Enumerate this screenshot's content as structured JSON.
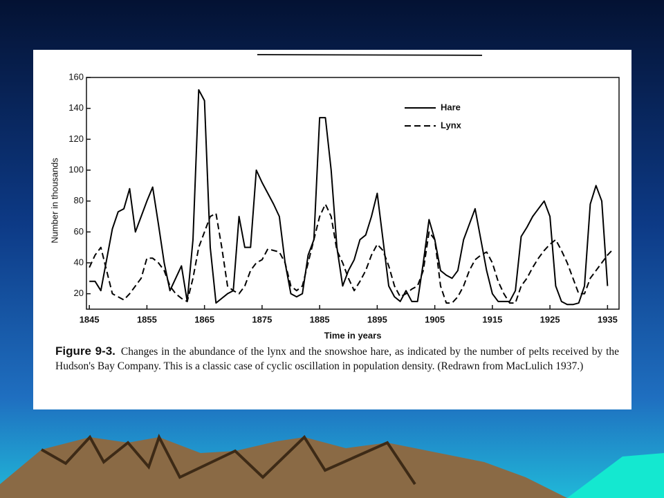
{
  "chart_data": {
    "type": "line",
    "x_label": "Time in years",
    "y_label": "Number in thousands",
    "figure_label": "Figure 9-3.",
    "caption": "Changes in the abundance of the lynx and the snowshoe hare, as indicated by the number of pelts received by the Hudson's Bay Company. This is a classic case of cyclic oscillation in population density. (Redrawn from MacLulich 1937.)",
    "x": [
      1845,
      1846,
      1847,
      1848,
      1849,
      1850,
      1851,
      1852,
      1853,
      1854,
      1855,
      1856,
      1857,
      1858,
      1859,
      1860,
      1861,
      1862,
      1863,
      1864,
      1865,
      1866,
      1867,
      1868,
      1869,
      1870,
      1871,
      1872,
      1873,
      1874,
      1875,
      1876,
      1877,
      1878,
      1879,
      1880,
      1881,
      1882,
      1883,
      1884,
      1885,
      1886,
      1887,
      1888,
      1889,
      1890,
      1891,
      1892,
      1893,
      1894,
      1895,
      1896,
      1897,
      1898,
      1899,
      1900,
      1901,
      1902,
      1903,
      1904,
      1905,
      1906,
      1907,
      1908,
      1909,
      1910,
      1911,
      1912,
      1913,
      1914,
      1915,
      1916,
      1917,
      1918,
      1919,
      1920,
      1921,
      1922,
      1923,
      1924,
      1925,
      1926,
      1927,
      1928,
      1929,
      1930,
      1931,
      1932,
      1933,
      1934,
      1935,
      1936
    ],
    "series": [
      {
        "name": "Hare",
        "color": "#000000",
        "line_style": "solid",
        "values": [
          28,
          28,
          22,
          42,
          62,
          73,
          75,
          88,
          60,
          70,
          80,
          89,
          65,
          40,
          22,
          30,
          38,
          15,
          55,
          152,
          145,
          50,
          14,
          17,
          20,
          22,
          70,
          50,
          50,
          100,
          92,
          85,
          78,
          70,
          40,
          20,
          18,
          20,
          45,
          55,
          134,
          134,
          100,
          50,
          25,
          35,
          42,
          55,
          58,
          70,
          85,
          55,
          25,
          18,
          15,
          22,
          15,
          15,
          40,
          68,
          55,
          35,
          32,
          30,
          35,
          55,
          65,
          75,
          55,
          35,
          20,
          15,
          15,
          15,
          22,
          57,
          63,
          70,
          75,
          80,
          70,
          25,
          15,
          13,
          13,
          14,
          25,
          78,
          90,
          80,
          25,
          null
        ]
      },
      {
        "name": "Lynx",
        "color": "#000000",
        "line_style": "dashed",
        "values": [
          37,
          45,
          50,
          35,
          20,
          18,
          16,
          20,
          25,
          30,
          43,
          43,
          40,
          35,
          25,
          20,
          17,
          15,
          30,
          50,
          60,
          70,
          72,
          50,
          25,
          22,
          20,
          25,
          35,
          40,
          42,
          49,
          48,
          47,
          40,
          25,
          22,
          25,
          40,
          55,
          70,
          78,
          70,
          48,
          40,
          30,
          22,
          28,
          35,
          45,
          52,
          48,
          38,
          25,
          18,
          20,
          23,
          25,
          35,
          60,
          55,
          25,
          14,
          14,
          18,
          25,
          35,
          42,
          45,
          47,
          40,
          28,
          20,
          14,
          14,
          25,
          30,
          37,
          43,
          48,
          52,
          55,
          48,
          40,
          30,
          20,
          20,
          30,
          35,
          40,
          45,
          49
        ]
      }
    ],
    "xlim": [
      1844.5,
      1937
    ],
    "xticks": [
      1845,
      1855,
      1865,
      1875,
      1885,
      1895,
      1905,
      1915,
      1925,
      1935
    ],
    "ylim": [
      10,
      160
    ],
    "yticks": [
      20,
      40,
      60,
      80,
      100,
      120,
      140,
      160
    ],
    "grid": false,
    "legend": "upper right"
  }
}
